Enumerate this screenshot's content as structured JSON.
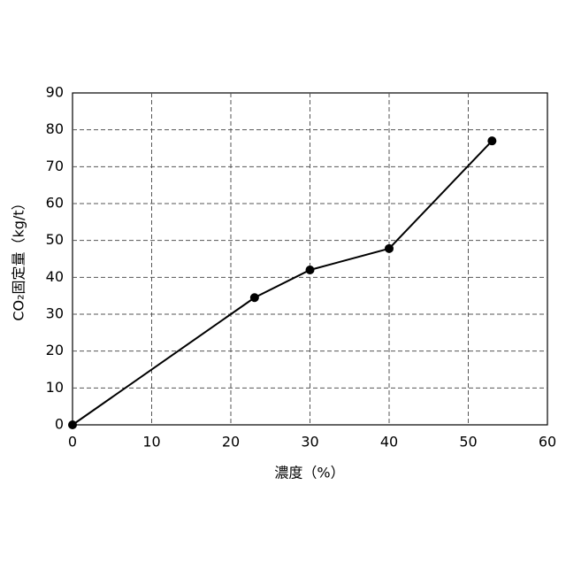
{
  "chart_data": {
    "type": "line",
    "x_label": "濃度（%）",
    "y_label": "CO₂固定量（kg/t）",
    "x": [
      0,
      23,
      30,
      40,
      53
    ],
    "series": [
      {
        "values": [
          0,
          34.5,
          42,
          47.8,
          77
        ],
        "color": "#000000"
      }
    ],
    "xlim": [
      0,
      60
    ],
    "xticks": [
      0,
      10,
      20,
      30,
      40,
      50,
      60
    ],
    "ylim": [
      0,
      90
    ],
    "yticks": [
      0,
      10,
      20,
      30,
      40,
      50,
      60,
      70,
      80,
      90
    ],
    "grid": true
  }
}
